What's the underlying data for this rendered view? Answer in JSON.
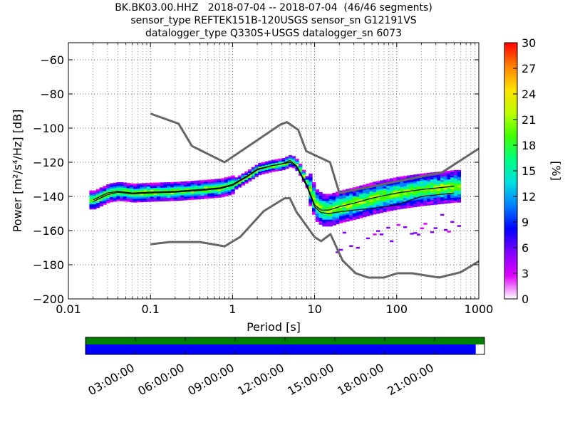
{
  "title": {
    "line1": "BK.BK03.00.HHZ   2018-07-04 -- 2018-07-04  (46/46 segments)",
    "line2": "sensor_type REFTEK151B-120USGS sensor_sn G12191VS",
    "line3": "datalogger_type Q330S+USGS datalogger_sn 6073"
  },
  "chart_data": [
    {
      "type": "heatmap",
      "title": "BK.BK03.00.HHZ   2018-07-04 -- 2018-07-04  (46/46 segments)",
      "xlabel": "Period [s]",
      "ylabel": "Power [m²/s⁴/Hz] [dB]",
      "xscale": "log",
      "xlim": [
        0.01,
        1000
      ],
      "ylim": [
        -200,
        -50
      ],
      "x_ticks": [
        0.01,
        0.1,
        1,
        10,
        100,
        1000
      ],
      "x_tick_labels": [
        "0.01",
        "0.1",
        "1",
        "10",
        "100",
        "1000"
      ],
      "y_ticks": [
        -200,
        -180,
        -160,
        -140,
        -120,
        -100,
        -80,
        -60
      ],
      "y_tick_labels": [
        "−200",
        "−180",
        "−160",
        "−140",
        "−120",
        "−100",
        "−80",
        "−60"
      ],
      "grid": "dotted",
      "colorbar": {
        "label": "[%]",
        "range": [
          0,
          30
        ],
        "ticks": [
          0,
          3,
          6,
          9,
          12,
          15,
          18,
          21,
          24,
          27,
          30
        ],
        "tick_labels": [
          "0",
          "3",
          "6",
          "9",
          "12",
          "15",
          "18",
          "21",
          "24",
          "27",
          "30"
        ],
        "colormap": [
          "#ffffff",
          "#e000ff",
          "#8000ff",
          "#0000ff",
          "#0080ff",
          "#00e0e0",
          "#00ff80",
          "#40ff00",
          "#c0ff00",
          "#ffe000",
          "#ff8000",
          "#ff0000"
        ]
      },
      "series": [
        {
          "role": "new high noise model",
          "color": "#666666",
          "x": [
            0.1,
            0.22,
            0.32,
            0.8,
            3.8,
            4.6,
            6.3,
            7.9,
            15.4,
            20,
            354.8,
            1000
          ],
          "y": [
            -91.5,
            -97.4,
            -110.5,
            -120,
            -98,
            -96.5,
            -101,
            -113.5,
            -120,
            -138,
            -126,
            -112
          ]
        },
        {
          "role": "new low noise model",
          "color": "#666666",
          "x": [
            0.1,
            0.17,
            0.4,
            0.8,
            1.24,
            2.4,
            4.3,
            5,
            6,
            10,
            12,
            15.6,
            21.9,
            31.6,
            45,
            70,
            101,
            154,
            328,
            600,
            1000
          ],
          "y": [
            -168,
            -166.7,
            -166.7,
            -169.2,
            -163.7,
            -148.6,
            -141.1,
            -141.1,
            -149,
            -163.8,
            -166.2,
            -162.1,
            -177.5,
            -185,
            -187.5,
            -187.5,
            -185,
            -185,
            -187.5,
            -184.4,
            -178
          ]
        },
        {
          "role": "mode",
          "color": "#000000",
          "x": [
            0.02,
            0.03,
            0.04,
            0.06,
            0.1,
            0.2,
            0.4,
            0.7,
            1,
            1.5,
            2,
            3,
            4,
            5,
            6,
            8,
            10,
            12,
            15,
            20,
            30,
            50,
            100,
            200,
            500
          ],
          "y": [
            -142,
            -138,
            -137,
            -138,
            -137.5,
            -137,
            -136,
            -135,
            -133,
            -128,
            -124,
            -122,
            -121,
            -119,
            -122,
            -133,
            -145,
            -148,
            -148,
            -146,
            -144,
            -141,
            -138,
            -136,
            -134
          ]
        },
        {
          "role": "mean",
          "color": "#000000",
          "x": [
            0.02,
            0.03,
            0.04,
            0.06,
            0.1,
            0.2,
            0.4,
            0.7,
            1,
            1.5,
            2,
            3,
            4,
            5,
            6,
            8,
            10,
            12,
            15,
            20,
            30,
            50,
            100,
            200,
            500
          ],
          "y": [
            -143,
            -139,
            -137.5,
            -138.5,
            -138,
            -137.5,
            -136.5,
            -135.5,
            -133.5,
            -128.5,
            -124.5,
            -122,
            -121,
            -120,
            -122.5,
            -134,
            -146,
            -149.5,
            -150,
            -149,
            -148,
            -147,
            -145,
            -140,
            -138
          ]
        }
      ],
      "coverage": {
        "type": "bar",
        "x_tick_labels": [
          "03:00:00",
          "06:00:00",
          "09:00:00",
          "12:00:00",
          "15:00:00",
          "18:00:00",
          "21:00:00"
        ],
        "top_band_color": "#008000",
        "data_band_color": "#0000ff",
        "data_fraction": 0.978
      }
    }
  ]
}
